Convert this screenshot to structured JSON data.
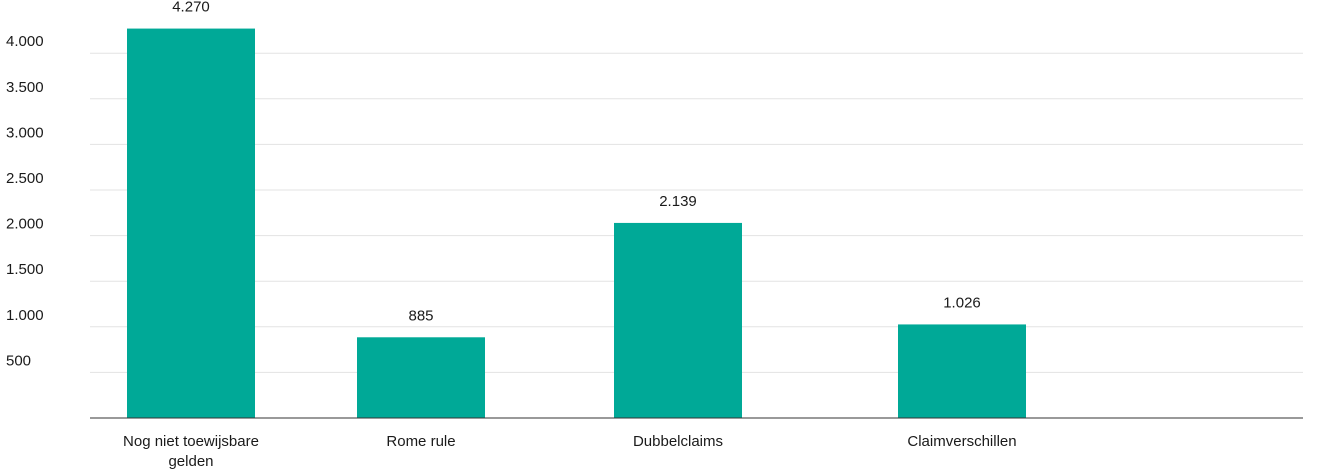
{
  "chart_data": {
    "type": "bar",
    "categories": [
      [
        "Nog niet toewijsbare",
        "gelden"
      ],
      [
        "Rome rule"
      ],
      [
        "Dubbelclaims"
      ],
      [
        "Claimverschillen"
      ]
    ],
    "values": [
      4270,
      885,
      2139,
      1026
    ],
    "value_labels": [
      "4.270",
      "885",
      "2.139",
      "1.026"
    ],
    "ylim": [
      0,
      4500
    ],
    "yticks": [
      500,
      1000,
      1500,
      2000,
      2500,
      3000,
      3500,
      4000
    ],
    "ytick_labels": [
      "500",
      "1.000",
      "1.500",
      "2.000",
      "2.500",
      "3.000",
      "3.500",
      "4.000"
    ],
    "grid": true,
    "bar_color": "#00a997"
  }
}
